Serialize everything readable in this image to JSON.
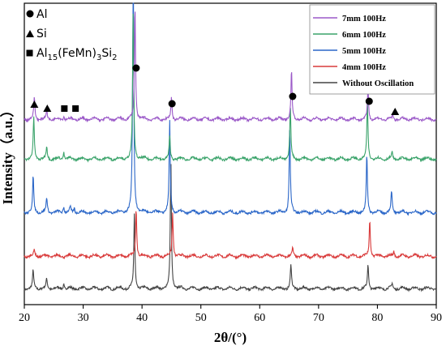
{
  "chart_data": {
    "type": "line",
    "xlabel": "2θ/(°)",
    "ylabel": "Intensity（a.u.）",
    "xlim": [
      20,
      90
    ],
    "xticks": [
      "20",
      "30",
      "40",
      "50",
      "60",
      "70",
      "80",
      "90"
    ],
    "legend_position": "top-right",
    "series": [
      {
        "name": "7mm 100Hz",
        "color": "#9b59c8",
        "offset": 4,
        "peaks": [
          [
            21.7,
            0.18
          ],
          [
            23.8,
            0.07
          ],
          [
            26.7,
            0.03
          ],
          [
            38.8,
            0.95
          ],
          [
            45.0,
            0.18
          ],
          [
            65.4,
            0.4
          ],
          [
            78.4,
            0.26
          ],
          [
            82.6,
            0.03
          ]
        ]
      },
      {
        "name": "6mm 100Hz",
        "color": "#3aa36a",
        "offset": 3,
        "peaks": [
          [
            21.6,
            0.34
          ],
          [
            23.8,
            0.1
          ],
          [
            26.7,
            0.06
          ],
          [
            38.5,
            1.22
          ],
          [
            44.7,
            0.18
          ],
          [
            65.2,
            0.42
          ],
          [
            78.3,
            0.48
          ],
          [
            82.5,
            0.05
          ]
        ]
      },
      {
        "name": "5mm 100Hz",
        "color": "#2a66c8",
        "offset": 2,
        "peaks": [
          [
            21.5,
            0.3
          ],
          [
            23.8,
            0.12
          ],
          [
            26.7,
            0.05
          ],
          [
            27.8,
            0.04
          ],
          [
            28.5,
            0.04
          ],
          [
            38.5,
            2.12
          ],
          [
            44.7,
            0.75
          ],
          [
            65.1,
            0.7
          ],
          [
            78.2,
            0.48
          ],
          [
            82.4,
            0.18
          ]
        ]
      },
      {
        "name": "4mm 100Hz",
        "color": "#d93a3a",
        "offset": 1,
        "peaks": [
          [
            21.7,
            0.05
          ],
          [
            39.0,
            0.4
          ],
          [
            45.2,
            0.36
          ],
          [
            65.6,
            0.06
          ],
          [
            78.7,
            0.3
          ],
          [
            82.8,
            0.04
          ]
        ]
      },
      {
        "name": "Without Oscillation",
        "color": "#444444",
        "offset": 0,
        "peaks": [
          [
            21.5,
            0.15
          ],
          [
            23.8,
            0.08
          ],
          [
            26.7,
            0.04
          ],
          [
            38.7,
            0.62
          ],
          [
            44.9,
            1.05
          ],
          [
            65.3,
            0.2
          ],
          [
            78.4,
            0.2
          ],
          [
            82.5,
            0.04
          ]
        ]
      }
    ],
    "phase_legend": [
      {
        "symbol": "circle",
        "label": "Al"
      },
      {
        "symbol": "triangle",
        "label": "Si"
      },
      {
        "symbol": "square",
        "label_main": "Al",
        "sub1": "15",
        "mid": "(FeMn)",
        "sub2": "3",
        "mid2": "Si",
        "sub3": "2"
      }
    ],
    "peak_markers": [
      {
        "symbol": "triangle",
        "x": 21.7
      },
      {
        "symbol": "triangle",
        "x": 23.9
      },
      {
        "symbol": "square",
        "x": 26.8
      },
      {
        "symbol": "square",
        "x": 28.7
      },
      {
        "symbol": "circle",
        "x": 39.0
      },
      {
        "symbol": "circle",
        "x": 45.1
      },
      {
        "symbol": "circle",
        "x": 65.6
      },
      {
        "symbol": "circle",
        "x": 78.6
      },
      {
        "symbol": "triangle",
        "x": 83.0
      }
    ]
  }
}
